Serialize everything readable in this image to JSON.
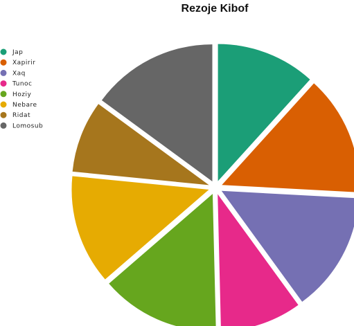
{
  "chart_data": {
    "type": "pie",
    "title": "Rezoje Kibof",
    "start_angle_deg": 90,
    "direction": "clockwise",
    "exploded": true,
    "legend_position": "top-left",
    "categories": [
      "Jap",
      "Xapirir",
      "Xaq",
      "Tunoc",
      "Hoziy",
      "Nebare",
      "Ridat",
      "Lomosub"
    ],
    "values": [
      10.6,
      12.8,
      12.8,
      8.7,
      12.7,
      11.7,
      7.7,
      13.5
    ],
    "colors": [
      "#1b9e77",
      "#d95f02",
      "#7570b3",
      "#e7298a",
      "#66a61e",
      "#e6ab02",
      "#a6761d",
      "#666666"
    ]
  }
}
